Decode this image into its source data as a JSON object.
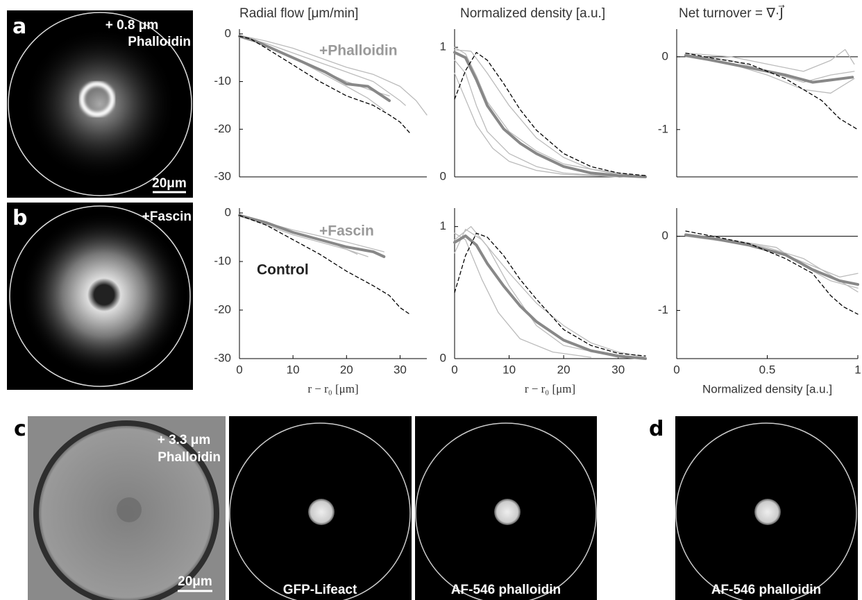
{
  "panels": [
    {
      "label": "a",
      "annotation": [
        "+ 0.8 μm",
        "Phalloidin"
      ],
      "scale_bar": "20μm"
    },
    {
      "label": "b",
      "annotation": [
        "+Fascin"
      ]
    },
    {
      "label": "c",
      "annotation": [
        "+ 3.3 μm",
        "Phalloidin"
      ],
      "scale_bar": "20μm",
      "captions": [
        "GFP-Lifeact",
        "AF-546 phalloidin"
      ]
    },
    {
      "label": "d",
      "captions": [
        "AF-546 phalloidin"
      ]
    }
  ],
  "chart_data": [
    {
      "type": "line",
      "title": "Radial flow [μm/min]",
      "xlim": [
        0,
        35
      ],
      "ylim": [
        -30,
        1
      ],
      "yticks": [
        0,
        -10,
        -20,
        -30
      ],
      "annotations": [
        {
          "text": "+Phalloidin",
          "color": "#999999"
        }
      ],
      "series": [
        {
          "color": "#bbbbbb",
          "linewidth": 1.3,
          "x": [
            0,
            5,
            10,
            15,
            20,
            25,
            30,
            33,
            35
          ],
          "values": [
            -0.3,
            -1.5,
            -3,
            -5,
            -7,
            -8.5,
            -11,
            -14,
            -17
          ]
        },
        {
          "color": "#bbbbbb",
          "linewidth": 1.3,
          "x": [
            0,
            5,
            10,
            15,
            20,
            25,
            28
          ],
          "values": [
            -0.5,
            -2.5,
            -5,
            -7.5,
            -10,
            -12,
            -13
          ]
        },
        {
          "color": "#bbbbbb",
          "linewidth": 1.3,
          "x": [
            0,
            5,
            10,
            15,
            20,
            24,
            27
          ],
          "values": [
            -0.5,
            -2.5,
            -5,
            -8,
            -11,
            -13.5,
            -16
          ]
        },
        {
          "color": "#bbbbbb",
          "linewidth": 1.3,
          "x": [
            0,
            5,
            10,
            15,
            20,
            25,
            30,
            31
          ],
          "values": [
            -0.5,
            -2,
            -4,
            -6,
            -8,
            -10,
            -14,
            -15
          ]
        },
        {
          "color": "#888888",
          "linewidth": 4,
          "x": [
            0,
            3,
            8,
            12,
            16,
            20,
            24,
            28
          ],
          "values": [
            -0.5,
            -1.5,
            -4,
            -6,
            -8,
            -10.5,
            -11,
            -14
          ]
        },
        {
          "color": "#000000",
          "linewidth": 1.3,
          "dash": true,
          "x": [
            0,
            2,
            5,
            10,
            15,
            20,
            25,
            28,
            30,
            32
          ],
          "values": [
            -0.5,
            -1,
            -3,
            -6.5,
            -10,
            -13,
            -15,
            -17,
            -18.5,
            -21
          ]
        }
      ]
    },
    {
      "type": "line",
      "title": "Normalized density [a.u.]",
      "xlim": [
        0,
        35
      ],
      "ylim": [
        0,
        1.14
      ],
      "yticks": [
        0,
        1
      ],
      "series": [
        {
          "color": "#bbbbbb",
          "linewidth": 1.3,
          "x": [
            0,
            2,
            4,
            6,
            10,
            15,
            20,
            30,
            35
          ],
          "values": [
            1,
            0.95,
            0.78,
            0.58,
            0.35,
            0.2,
            0.1,
            0.02,
            0
          ]
        },
        {
          "color": "#bbbbbb",
          "linewidth": 1.3,
          "x": [
            0,
            2,
            4,
            6,
            10,
            15,
            20,
            30
          ],
          "values": [
            0.9,
            0.8,
            0.55,
            0.35,
            0.18,
            0.08,
            0.03,
            0
          ]
        },
        {
          "color": "#bbbbbb",
          "linewidth": 1.3,
          "x": [
            0,
            3,
            6,
            10,
            15,
            20,
            25,
            35
          ],
          "values": [
            0.98,
            0.97,
            0.8,
            0.55,
            0.3,
            0.15,
            0.06,
            0
          ]
        },
        {
          "color": "#bbbbbb",
          "linewidth": 1.3,
          "x": [
            0,
            2,
            4,
            7,
            10,
            15,
            20,
            30
          ],
          "values": [
            0.8,
            0.6,
            0.4,
            0.22,
            0.12,
            0.05,
            0.02,
            0
          ]
        },
        {
          "color": "#888888",
          "linewidth": 4,
          "x": [
            0,
            2,
            4,
            6,
            9,
            12,
            15,
            20,
            25,
            30,
            35
          ],
          "values": [
            0.96,
            0.92,
            0.75,
            0.55,
            0.37,
            0.26,
            0.18,
            0.08,
            0.03,
            0.01,
            0
          ]
        },
        {
          "color": "#000000",
          "linewidth": 1.3,
          "dash": true,
          "x": [
            0,
            2,
            4,
            6,
            9,
            12,
            15,
            20,
            25,
            30,
            35
          ],
          "values": [
            0.6,
            0.82,
            0.96,
            0.9,
            0.72,
            0.52,
            0.36,
            0.18,
            0.08,
            0.03,
            0.01
          ]
        }
      ]
    },
    {
      "type": "line",
      "title": "Net turnover = ∇·J⃗",
      "xlim": [
        0,
        1
      ],
      "ylim": [
        -1.65,
        0.38
      ],
      "yticks": [
        0,
        -1
      ],
      "hline": 0,
      "series": [
        {
          "color": "#bbbbbb",
          "linewidth": 1.3,
          "x": [
            0.05,
            0.3,
            0.5,
            0.7,
            0.85,
            0.93,
            0.98
          ],
          "values": [
            0.05,
            0,
            -0.1,
            -0.2,
            -0.05,
            0.1,
            -0.1
          ]
        },
        {
          "color": "#bbbbbb",
          "linewidth": 1.3,
          "x": [
            0.05,
            0.3,
            0.5,
            0.7,
            0.85,
            0.98
          ],
          "values": [
            0,
            -0.1,
            -0.25,
            -0.45,
            -0.5,
            -0.3
          ]
        },
        {
          "color": "#bbbbbb",
          "linewidth": 1.3,
          "x": [
            0.05,
            0.3,
            0.5,
            0.7,
            0.85,
            0.98
          ],
          "values": [
            0.03,
            -0.05,
            -0.2,
            -0.35,
            -0.25,
            -0.2
          ]
        },
        {
          "color": "#888888",
          "linewidth": 4,
          "x": [
            0.05,
            0.2,
            0.4,
            0.6,
            0.75,
            0.85,
            0.97
          ],
          "values": [
            0.02,
            -0.05,
            -0.15,
            -0.25,
            -0.35,
            -0.32,
            -0.28
          ]
        },
        {
          "color": "#000000",
          "linewidth": 1.3,
          "dash": true,
          "x": [
            0.05,
            0.2,
            0.4,
            0.6,
            0.7,
            0.8,
            0.9,
            1
          ],
          "values": [
            0.05,
            -0.02,
            -0.1,
            -0.3,
            -0.45,
            -0.6,
            -0.85,
            -1
          ]
        }
      ]
    },
    {
      "type": "line",
      "xlabel": "r − r₀ [μm]",
      "xlim": [
        0,
        35
      ],
      "ylim": [
        -30,
        1
      ],
      "xticks": [
        0,
        10,
        20,
        30
      ],
      "yticks": [
        0,
        -10,
        -20,
        -30
      ],
      "annotations": [
        {
          "text": "+Fascin",
          "color": "#999999"
        },
        {
          "text": "Control",
          "color": "#222222"
        }
      ],
      "series": [
        {
          "color": "#bbbbbb",
          "linewidth": 1.3,
          "x": [
            0,
            10,
            20,
            27
          ],
          "values": [
            -0.5,
            -3.5,
            -6,
            -8
          ]
        },
        {
          "color": "#bbbbbb",
          "linewidth": 1.3,
          "x": [
            0,
            10,
            18,
            22
          ],
          "values": [
            -0.5,
            -4,
            -6.5,
            -8.5
          ]
        },
        {
          "color": "#bbbbbb",
          "linewidth": 1.3,
          "x": [
            0,
            10,
            20,
            24
          ],
          "values": [
            -0.5,
            -4.5,
            -7.5,
            -9
          ]
        },
        {
          "color": "#888888",
          "linewidth": 4,
          "x": [
            0,
            5,
            10,
            15,
            20,
            25,
            27
          ],
          "values": [
            -0.5,
            -2,
            -4,
            -5.5,
            -7,
            -8,
            -9
          ]
        },
        {
          "color": "#000000",
          "linewidth": 1.3,
          "dash": true,
          "x": [
            0,
            5,
            10,
            15,
            20,
            25,
            28,
            30,
            32
          ],
          "values": [
            -0.5,
            -2.5,
            -5.5,
            -8.5,
            -12,
            -15,
            -17,
            -19.5,
            -21
          ]
        }
      ]
    },
    {
      "type": "line",
      "xlabel": "r − r₀ [μm]",
      "xlim": [
        0,
        35
      ],
      "ylim": [
        0,
        1.14
      ],
      "xticks": [
        0,
        10,
        20,
        30
      ],
      "yticks": [
        0,
        1
      ],
      "series": [
        {
          "color": "#bbbbbb",
          "linewidth": 1.3,
          "x": [
            0,
            3,
            6,
            10,
            15,
            20,
            30
          ],
          "values": [
            0.9,
            1,
            0.85,
            0.55,
            0.25,
            0.1,
            0.01
          ]
        },
        {
          "color": "#bbbbbb",
          "linewidth": 1.3,
          "x": [
            0,
            2,
            5,
            10,
            15,
            20,
            25,
            30,
            35
          ],
          "values": [
            0.8,
            0.98,
            0.9,
            0.65,
            0.42,
            0.25,
            0.12,
            0.05,
            0.01
          ]
        },
        {
          "color": "#bbbbbb",
          "linewidth": 1.3,
          "x": [
            0,
            2,
            5,
            8,
            12,
            18,
            25
          ],
          "values": [
            0.95,
            0.9,
            0.6,
            0.35,
            0.15,
            0.05,
            0.01
          ]
        },
        {
          "color": "#888888",
          "linewidth": 4,
          "x": [
            0,
            2,
            4,
            6,
            9,
            12,
            15,
            20,
            25,
            30,
            35
          ],
          "values": [
            0.88,
            0.93,
            0.86,
            0.72,
            0.55,
            0.4,
            0.28,
            0.14,
            0.06,
            0.02,
            0
          ]
        },
        {
          "color": "#000000",
          "linewidth": 1.3,
          "dash": true,
          "x": [
            0,
            2,
            4,
            6,
            9,
            12,
            15,
            20,
            25,
            30,
            35
          ],
          "values": [
            0.5,
            0.78,
            0.95,
            0.92,
            0.78,
            0.6,
            0.45,
            0.22,
            0.1,
            0.04,
            0.02
          ]
        }
      ]
    },
    {
      "type": "line",
      "xlabel": "Normalized density [a.u.]",
      "xlim": [
        0,
        1
      ],
      "ylim": [
        -1.65,
        0.38
      ],
      "xticks": [
        0,
        0.5,
        1
      ],
      "yticks": [
        0,
        -1
      ],
      "hline": 0,
      "series": [
        {
          "color": "#bbbbbb",
          "linewidth": 1.3,
          "x": [
            0.05,
            0.3,
            0.55,
            0.75,
            0.9,
            1
          ],
          "values": [
            0,
            -0.08,
            -0.2,
            -0.4,
            -0.55,
            -0.5
          ]
        },
        {
          "color": "#bbbbbb",
          "linewidth": 1.3,
          "x": [
            0.05,
            0.3,
            0.55,
            0.7,
            0.85,
            1
          ],
          "values": [
            0.02,
            -0.05,
            -0.15,
            -0.4,
            -0.6,
            -0.7
          ]
        },
        {
          "color": "#bbbbbb",
          "linewidth": 1.3,
          "x": [
            0.05,
            0.3,
            0.5,
            0.7,
            0.9,
            1
          ],
          "values": [
            0,
            -0.05,
            -0.15,
            -0.3,
            -0.6,
            -0.75
          ]
        },
        {
          "color": "#888888",
          "linewidth": 4,
          "x": [
            0.05,
            0.2,
            0.4,
            0.6,
            0.75,
            0.9,
            1
          ],
          "values": [
            0.02,
            -0.03,
            -0.12,
            -0.25,
            -0.45,
            -0.6,
            -0.65
          ]
        },
        {
          "color": "#000000",
          "linewidth": 1.3,
          "dash": true,
          "x": [
            0.05,
            0.2,
            0.4,
            0.6,
            0.75,
            0.85,
            0.92,
            1
          ],
          "values": [
            0.07,
            0,
            -0.1,
            -0.3,
            -0.5,
            -0.8,
            -0.95,
            -1.05
          ]
        }
      ]
    }
  ]
}
